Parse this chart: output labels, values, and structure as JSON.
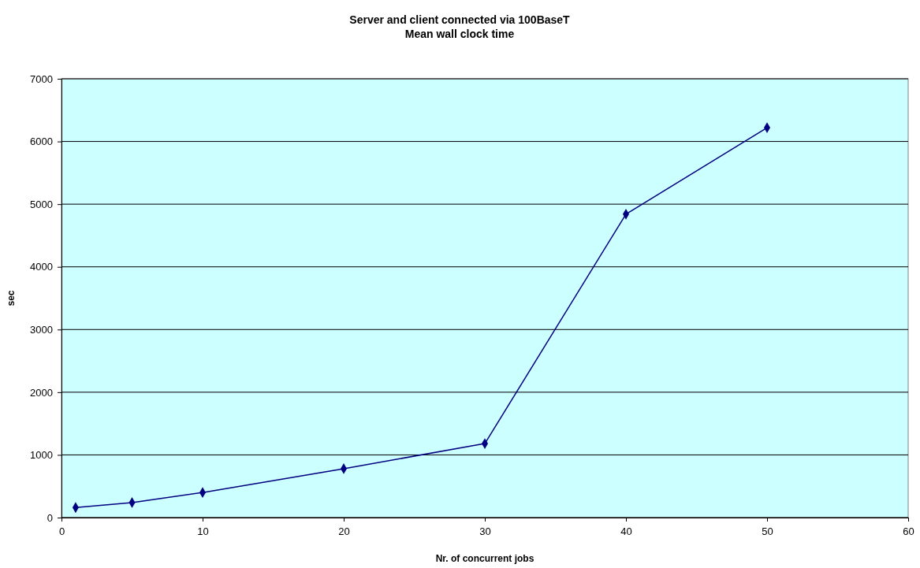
{
  "chart_data": {
    "type": "line",
    "title": "Server and client connected via 100BaseT",
    "subtitle": "Mean wall clock time",
    "xlabel": "Nr. of concurrent jobs",
    "ylabel": "sec",
    "x": [
      1,
      5,
      10,
      20,
      30,
      40,
      50
    ],
    "series": [
      {
        "color": "#000080",
        "values": [
          160,
          240,
          400,
          780,
          1180,
          4840,
          6220
        ]
      }
    ],
    "xlim": [
      0,
      60
    ],
    "xticks": [
      0,
      10,
      20,
      30,
      40,
      50,
      60
    ],
    "ylim": [
      0,
      7000
    ],
    "yticks": [
      0,
      1000,
      2000,
      3000,
      4000,
      5000,
      6000,
      7000
    ],
    "grid": "y",
    "marker": "diamond",
    "line_style": "solid"
  }
}
